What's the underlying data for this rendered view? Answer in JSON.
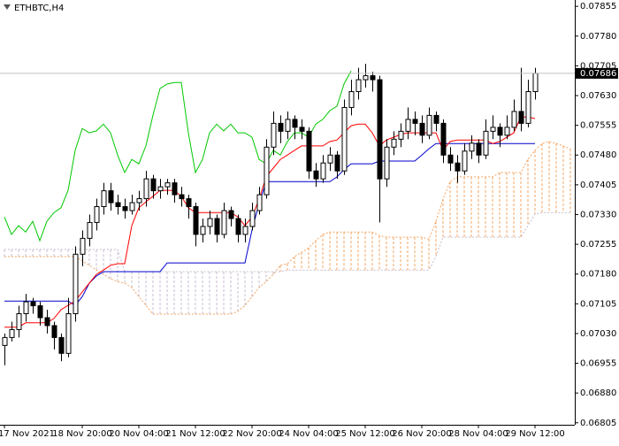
{
  "chart_data": {
    "type": "candlestick",
    "title": "ETHBTC,H4",
    "ylim": [
      0.068,
      0.07871
    ],
    "yticks": [
      0.07855,
      {
        "value": 0.0778,
        "label": "0.07780"
      },
      0.07705,
      {
        "value": 0.0763,
        "label": "0.07630"
      },
      0.07555,
      {
        "value": 0.0748,
        "label": "0.07480"
      },
      0.07405,
      {
        "value": 0.0733,
        "label": "0.07330"
      },
      0.07255,
      {
        "value": 0.0718,
        "label": "0.07180"
      },
      0.07105,
      {
        "value": 0.0703,
        "label": "0.07030"
      },
      0.06955,
      {
        "value": 0.0688,
        "label": "0.06880"
      },
      0.06805
    ],
    "xlim": [
      -0.625,
      80.625
    ],
    "xticks": [
      {
        "value": 0,
        "label": "17 Nov 2021"
      },
      {
        "value": 11,
        "label": "18 Nov 20:00"
      },
      {
        "value": 19,
        "label": "20 Nov 04:00"
      },
      {
        "value": 27,
        "label": "21 Nov 12:00"
      },
      {
        "value": 35,
        "label": "22 Nov 20:00"
      },
      {
        "value": 43,
        "label": "24 Nov 04:00"
      },
      {
        "value": 51,
        "label": "25 Nov 12:00"
      },
      {
        "value": 59,
        "label": "26 Nov 20:00"
      },
      {
        "value": 67,
        "label": "28 Nov 04:00"
      },
      {
        "value": 75,
        "label": "29 Nov 12:00"
      }
    ],
    "bull_color": "#ffffff",
    "bear_color": "#000000",
    "grid": false,
    "last_price": 0.07686,
    "open": [
      0.07,
      0.0702,
      0.0704,
      0.0708,
      0.0711,
      0.071,
      0.0707,
      0.0705,
      0.0702,
      0.0698,
      0.0708,
      0.0723,
      0.0727,
      0.0731,
      0.0735,
      0.0739,
      0.0736,
      0.0735,
      0.0734,
      0.0736,
      0.0737,
      0.0742,
      0.0739,
      0.074,
      0.0741,
      0.0738,
      0.0737,
      0.0735,
      0.0728,
      0.073,
      0.0732,
      0.0728,
      0.0734,
      0.0732,
      0.0728,
      0.073,
      0.0734,
      0.0738,
      0.075,
      0.0756,
      0.0754,
      0.0757,
      0.0755,
      0.0754,
      0.0744,
      0.0742,
      0.0746,
      0.0748,
      0.0744,
      0.076,
      0.0764,
      0.0767,
      0.0768,
      0.0767,
      0.0742,
      0.075,
      0.0752,
      0.0754,
      0.0757,
      0.0756,
      0.0753,
      0.0758,
      0.0756,
      0.0748,
      0.0746,
      0.0744,
      0.0749,
      0.0751,
      0.0748,
      0.0754,
      0.0755,
      0.0753,
      0.0755,
      0.0759,
      0.0756,
      0.0764
    ],
    "high": [
      0.0703,
      0.0706,
      0.071,
      0.0713,
      0.0712,
      0.0711,
      0.0709,
      0.0706,
      0.0703,
      0.0712,
      0.0725,
      0.0729,
      0.0733,
      0.0737,
      0.0741,
      0.0741,
      0.0738,
      0.0737,
      0.0738,
      0.0739,
      0.0744,
      0.0743,
      0.0742,
      0.0742,
      0.0742,
      0.074,
      0.0738,
      0.0736,
      0.0732,
      0.0734,
      0.0733,
      0.0736,
      0.0735,
      0.0733,
      0.0732,
      0.0736,
      0.074,
      0.0752,
      0.0759,
      0.0758,
      0.0759,
      0.0758,
      0.0757,
      0.0755,
      0.0746,
      0.0748,
      0.075,
      0.0749,
      0.0762,
      0.0767,
      0.077,
      0.0771,
      0.0769,
      0.0768,
      0.0752,
      0.0754,
      0.0756,
      0.076,
      0.0759,
      0.0758,
      0.076,
      0.0759,
      0.0757,
      0.075,
      0.0748,
      0.0751,
      0.0753,
      0.0752,
      0.0757,
      0.0758,
      0.0756,
      0.0758,
      0.0762,
      0.077,
      0.0767,
      0.077
    ],
    "low": [
      0.0695,
      0.0701,
      0.0702,
      0.0706,
      0.0708,
      0.0705,
      0.0703,
      0.0699,
      0.0696,
      0.0697,
      0.0706,
      0.072,
      0.0725,
      0.0729,
      0.0733,
      0.0734,
      0.0733,
      0.0732,
      0.0733,
      0.0734,
      0.0735,
      0.0737,
      0.0737,
      0.0738,
      0.0736,
      0.0735,
      0.0732,
      0.0725,
      0.0726,
      0.0728,
      0.0726,
      0.0727,
      0.073,
      0.0726,
      0.0726,
      0.0729,
      0.0733,
      0.0737,
      0.0748,
      0.0751,
      0.0752,
      0.0752,
      0.0752,
      0.0742,
      0.074,
      0.0741,
      0.0744,
      0.0742,
      0.0743,
      0.0758,
      0.0762,
      0.0765,
      0.0764,
      0.0731,
      0.074,
      0.0748,
      0.075,
      0.0752,
      0.0753,
      0.0751,
      0.0752,
      0.0754,
      0.0746,
      0.0744,
      0.0741,
      0.0743,
      0.0747,
      0.0746,
      0.0747,
      0.0752,
      0.075,
      0.0752,
      0.0754,
      0.0754,
      0.0755,
      0.0762
    ],
    "close": [
      0.0702,
      0.0704,
      0.0708,
      0.0711,
      0.071,
      0.0707,
      0.0705,
      0.0702,
      0.0698,
      0.0708,
      0.0723,
      0.0727,
      0.0731,
      0.0735,
      0.0739,
      0.0736,
      0.0735,
      0.0734,
      0.0736,
      0.0737,
      0.0742,
      0.0739,
      0.074,
      0.0741,
      0.0738,
      0.0737,
      0.0735,
      0.0728,
      0.073,
      0.0732,
      0.0728,
      0.0734,
      0.0732,
      0.0728,
      0.073,
      0.0734,
      0.0738,
      0.075,
      0.0756,
      0.0754,
      0.0757,
      0.0755,
      0.0754,
      0.0744,
      0.0742,
      0.0746,
      0.0748,
      0.0744,
      0.076,
      0.0764,
      0.0767,
      0.0768,
      0.0767,
      0.0742,
      0.075,
      0.0752,
      0.0754,
      0.0757,
      0.0756,
      0.0753,
      0.0758,
      0.0756,
      0.0748,
      0.0746,
      0.0744,
      0.0749,
      0.0751,
      0.0748,
      0.0754,
      0.0755,
      0.0753,
      0.0755,
      0.0759,
      0.0756,
      0.0764,
      0.07686
    ],
    "ichimoku": {
      "tenkan": {
        "color": "#ff0000",
        "values": [
          0.07046,
          0.07046,
          0.07046,
          0.07057,
          0.07057,
          0.07057,
          0.07057,
          0.07068,
          0.0709,
          0.07101,
          0.07112,
          0.07135,
          0.07157,
          0.07179,
          0.0719,
          0.07202,
          0.07206,
          0.07206,
          0.07302,
          0.07347,
          0.07362,
          0.07376,
          0.07391,
          0.07391,
          0.07391,
          0.07376,
          0.07347,
          0.07335,
          0.07335,
          0.07335,
          0.07335,
          0.07335,
          0.07335,
          0.07324,
          0.07302,
          0.07324,
          0.07369,
          0.07425,
          0.07447,
          0.07469,
          0.0748,
          0.07492,
          0.07503,
          0.07503,
          0.07503,
          0.07503,
          0.07514,
          0.07518,
          0.07536,
          0.07554,
          0.07558,
          0.07558,
          0.07536,
          0.07503,
          0.07518,
          0.07525,
          0.07532,
          0.07536,
          0.07536,
          0.07536,
          0.07536,
          0.07536,
          0.07492,
          0.07514,
          0.07518,
          0.07518,
          0.07518,
          0.07518,
          0.07518,
          0.07509,
          0.07514,
          0.07525,
          0.07536,
          0.07576,
          0.07576,
          0.07572
        ]
      },
      "kijun": {
        "color": "#0000cd",
        "values": [
          0.07112,
          0.07112,
          0.07112,
          0.07112,
          0.07112,
          0.07112,
          0.07112,
          0.07112,
          0.07112,
          0.07112,
          0.07101,
          0.07123,
          0.07157,
          0.07175,
          0.07186,
          0.07186,
          0.07186,
          0.07186,
          0.07186,
          0.07186,
          0.07186,
          0.07186,
          0.07186,
          0.07208,
          0.07208,
          0.07208,
          0.07208,
          0.07208,
          0.07208,
          0.07208,
          0.07208,
          0.07208,
          0.07208,
          0.07208,
          0.07208,
          0.07291,
          0.07358,
          0.07413,
          0.07413,
          0.07413,
          0.07413,
          0.07413,
          0.07413,
          0.07413,
          0.07413,
          0.07413,
          0.07413,
          0.07425,
          0.07443,
          0.07458,
          0.07458,
          0.07458,
          0.07458,
          0.07465,
          0.07465,
          0.07465,
          0.07465,
          0.07465,
          0.07465,
          0.0748,
          0.07496,
          0.07509,
          0.07509,
          0.07509,
          0.07509,
          0.07509,
          0.07509,
          0.07509,
          0.07509,
          0.07509,
          0.07509,
          0.07509,
          0.07509,
          0.07509,
          0.07509,
          0.07509
        ]
      },
      "chikou": {
        "color": "#00c800",
        "values": [
          0.07324,
          0.0728,
          0.07302,
          0.07286,
          0.07313,
          0.07264,
          0.07313,
          0.07335,
          0.07347,
          0.07391,
          0.07492,
          0.07547,
          0.07536,
          0.07541,
          0.07558,
          0.07536,
          0.0748,
          0.07436,
          0.07469,
          0.07458,
          0.07503,
          0.07581,
          0.07648,
          0.07659,
          0.07663,
          0.07663,
          0.07536,
          0.07436,
          0.07469,
          0.07536,
          0.07558,
          0.07541,
          0.07558,
          0.07536,
          0.07536,
          0.07525,
          0.07469,
          0.07458,
          0.07492,
          0.0748,
          0.07514,
          0.07536,
          0.07536,
          0.07525,
          0.07558,
          0.0757,
          0.07592,
          0.07603,
          0.07659,
          0.07692
        ]
      },
      "span_a": [
        0.07224,
        0.07224,
        0.07224,
        0.07224,
        0.07224,
        0.07224,
        0.07224,
        0.07224,
        0.07224,
        0.07224,
        0.07224,
        0.07213,
        0.07202,
        0.0719,
        0.07179,
        0.07168,
        0.07161,
        0.07157,
        0.07146,
        0.07123,
        0.07101,
        0.07079,
        0.07079,
        0.07079,
        0.07079,
        0.07079,
        0.07079,
        0.07079,
        0.07079,
        0.07079,
        0.07079,
        0.07079,
        0.07079,
        0.07086,
        0.07101,
        0.07123,
        0.07146,
        0.07161,
        0.07179,
        0.07202,
        0.07206,
        0.07224,
        0.07235,
        0.07246,
        0.07264,
        0.0728,
        0.07286,
        0.07286,
        0.07286,
        0.07286,
        0.07286,
        0.07286,
        0.07286,
        0.07277,
        0.07273,
        0.07273,
        0.07273,
        0.07273,
        0.07273,
        0.07273,
        0.07268,
        0.07313,
        0.07369,
        0.07413,
        0.07425,
        0.07425,
        0.07425,
        0.07425,
        0.07425,
        0.07425,
        0.07436,
        0.07436,
        0.07436,
        0.07436,
        0.07469,
        0.07492,
        0.07509,
        0.07514,
        0.07509,
        0.07503,
        0.07496
      ],
      "span_b": [
        0.07242,
        0.07242,
        0.07242,
        0.07242,
        0.07242,
        0.07242,
        0.07242,
        0.07242,
        0.07242,
        0.07242,
        0.07242,
        0.07242,
        0.07242,
        0.07242,
        0.07242,
        0.07242,
        0.07242,
        0.07186,
        0.07186,
        0.07186,
        0.07186,
        0.07186,
        0.07186,
        0.07186,
        0.07186,
        0.07186,
        0.07186,
        0.07186,
        0.07186,
        0.07186,
        0.07186,
        0.07186,
        0.07186,
        0.07186,
        0.07186,
        0.07186,
        0.07186,
        0.07186,
        0.07186,
        0.07186,
        0.0719,
        0.0719,
        0.0719,
        0.0719,
        0.0719,
        0.0719,
        0.0719,
        0.0719,
        0.0719,
        0.0719,
        0.0719,
        0.0719,
        0.0719,
        0.0719,
        0.0719,
        0.0719,
        0.0719,
        0.0719,
        0.0719,
        0.0719,
        0.0719,
        0.07224,
        0.07273,
        0.07273,
        0.07273,
        0.07273,
        0.07273,
        0.07273,
        0.07273,
        0.07273,
        0.07273,
        0.07273,
        0.07273,
        0.07273,
        0.07302,
        0.07331,
        0.07335,
        0.07335,
        0.07335,
        0.07335,
        0.07335
      ],
      "cloud_up_color": "#f4a460",
      "cloud_down_color": "#c8bcd0"
    }
  }
}
